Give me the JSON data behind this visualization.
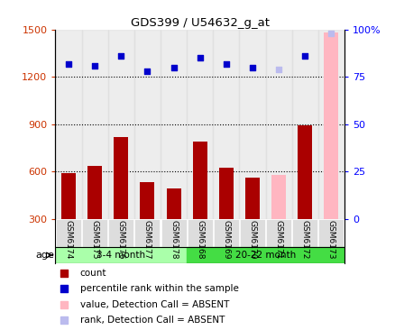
{
  "title": "GDS399 / U54632_g_at",
  "samples": [
    "GSM6174",
    "GSM6175",
    "GSM6176",
    "GSM6177",
    "GSM6178",
    "GSM6168",
    "GSM6169",
    "GSM6170",
    "GSM6171",
    "GSM6172",
    "GSM6173"
  ],
  "counts": [
    590,
    635,
    820,
    530,
    490,
    790,
    625,
    560,
    null,
    890,
    null
  ],
  "counts_absent": [
    null,
    null,
    null,
    null,
    null,
    null,
    null,
    null,
    580,
    null,
    1480
  ],
  "ranks": [
    82,
    81,
    86,
    78,
    80,
    85,
    82,
    80,
    null,
    86,
    null
  ],
  "ranks_absent": [
    null,
    null,
    null,
    null,
    null,
    null,
    null,
    null,
    79,
    null,
    98
  ],
  "group1_label": "3-4 month",
  "group2_label": "20-22 month",
  "age_label": "age",
  "ylim_left": [
    300,
    1500
  ],
  "ylim_right": [
    0,
    100
  ],
  "yticks_left": [
    300,
    600,
    900,
    1200,
    1500
  ],
  "yticks_right": [
    0,
    25,
    50,
    75,
    100
  ],
  "bar_color": "#AA0000",
  "bar_absent_color": "#FFB6C1",
  "dot_color": "#0000CC",
  "dot_absent_color": "#BBBBEE",
  "col_bg_color": "#DDDDDD",
  "group1_bg": "#AAFFAA",
  "group2_bg": "#44DD44",
  "legend_items": [
    "count",
    "percentile rank within the sample",
    "value, Detection Call = ABSENT",
    "rank, Detection Call = ABSENT"
  ],
  "legend_colors": [
    "#AA0000",
    "#0000CC",
    "#FFB6C1",
    "#BBBBEE"
  ]
}
